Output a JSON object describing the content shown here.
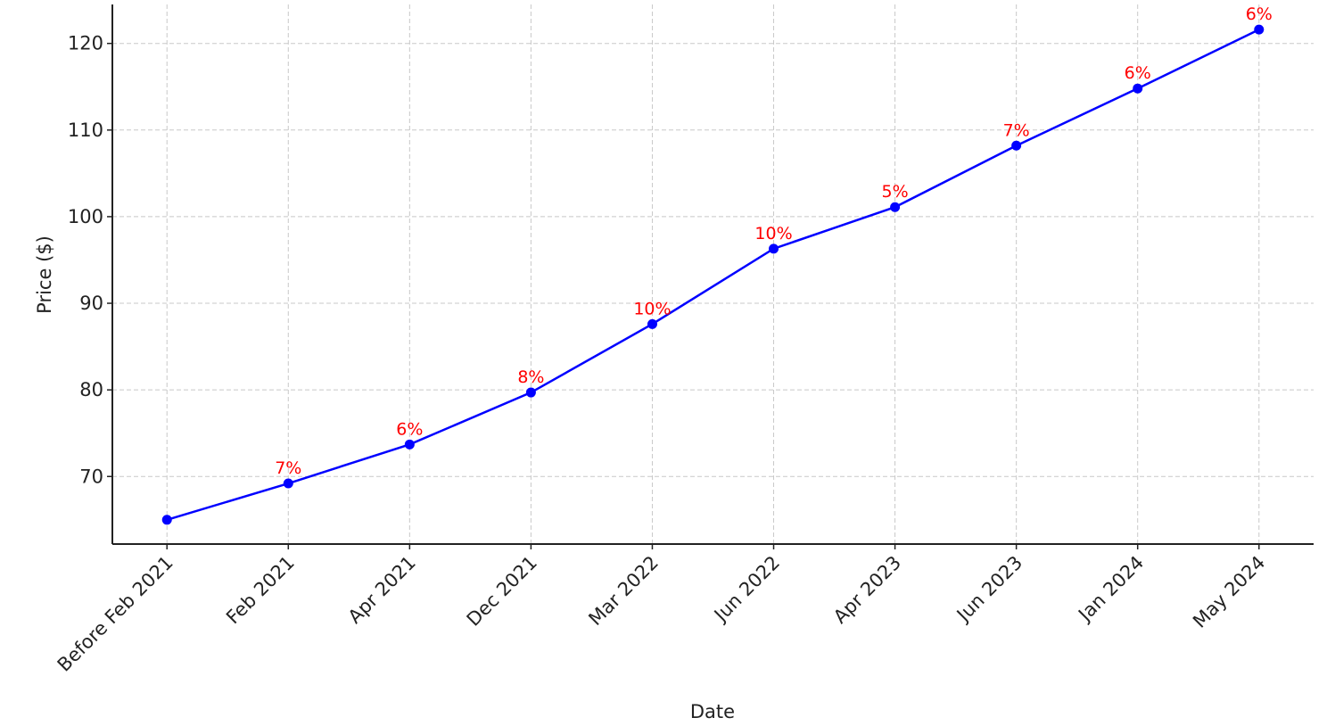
{
  "chart_data": {
    "type": "line",
    "x_label": "Date",
    "y_label": "Price ($)",
    "categories": [
      "Before Feb 2021",
      "Feb 2021",
      "Apr 2021",
      "Dec 2021",
      "Mar 2022",
      "Jun 2022",
      "Apr 2023",
      "Jun 2023",
      "Jan 2024",
      "May 2024"
    ],
    "series": [
      {
        "values": [
          65.0,
          69.2,
          73.7,
          79.7,
          87.6,
          96.3,
          101.1,
          108.2,
          114.8,
          121.6
        ],
        "color": "#0000ff",
        "annotations": [
          null,
          "7%",
          "6%",
          "8%",
          "10%",
          "10%",
          "5%",
          "7%",
          "6%",
          "6%"
        ],
        "annotation_color": "#ff0000"
      }
    ],
    "ylim": [
      62.2,
      124.5
    ],
    "yticks": [
      70,
      80,
      90,
      100,
      110,
      120
    ],
    "grid": true
  }
}
